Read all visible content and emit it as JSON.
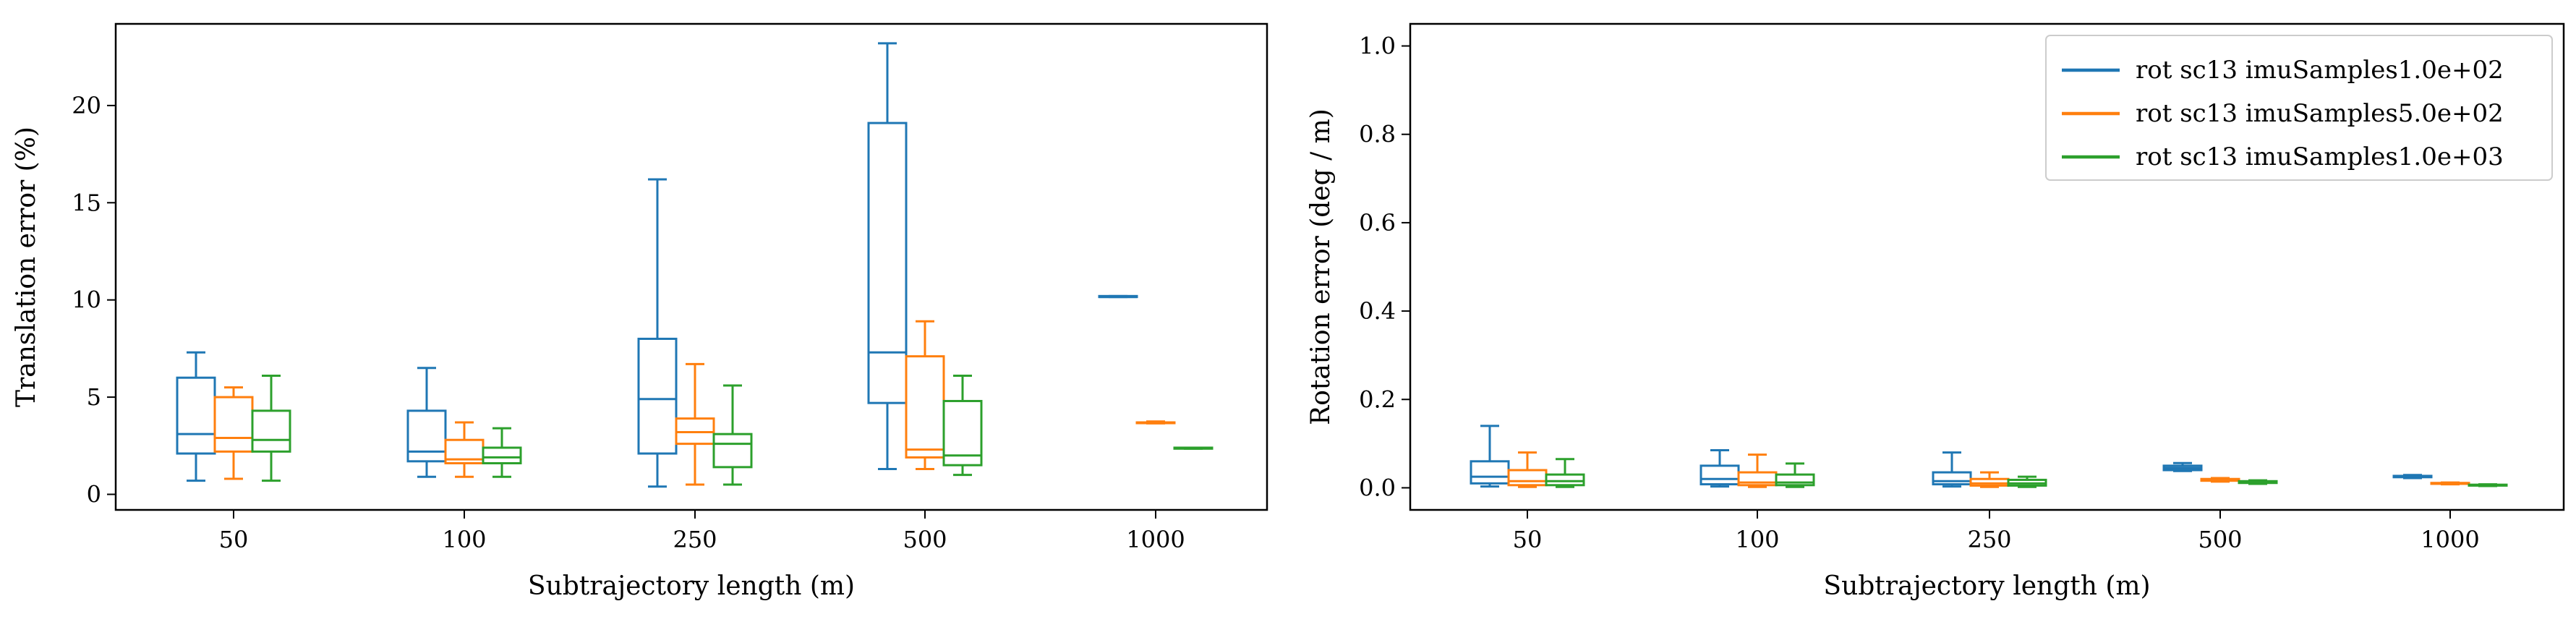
{
  "colors": {
    "series0": "#1f77b4",
    "series1": "#ff7f0e",
    "series2": "#2ca02c",
    "frame": "#000000",
    "legend_border": "#cccccc"
  },
  "chart_data": [
    {
      "type": "box",
      "xlabel": "Subtrajectory length (m)",
      "ylabel": "Translation error (%)",
      "categories": [
        "50",
        "100",
        "250",
        "500",
        "1000"
      ],
      "ylim": [
        -0.8,
        24.2
      ],
      "yticks": [
        0,
        5,
        10,
        15,
        20
      ],
      "grid": false,
      "legend": null,
      "series": [
        {
          "name": "rot sc13 imuSamples1.0e+02",
          "boxes": [
            {
              "min": 0.7,
              "q1": 2.1,
              "median": 3.1,
              "q3": 6.0,
              "max": 7.3
            },
            {
              "min": 0.9,
              "q1": 1.7,
              "median": 2.2,
              "q3": 4.3,
              "max": 6.5
            },
            {
              "min": 0.4,
              "q1": 2.1,
              "median": 4.9,
              "q3": 8.0,
              "max": 16.2
            },
            {
              "min": 1.3,
              "q1": 4.7,
              "median": 7.3,
              "q3": 19.1,
              "max": 23.2
            },
            {
              "min": 10.15,
              "q1": 10.15,
              "median": 10.15,
              "q3": 10.2,
              "max": 10.2
            }
          ]
        },
        {
          "name": "rot sc13 imuSamples5.0e+02",
          "boxes": [
            {
              "min": 0.8,
              "q1": 2.2,
              "median": 2.9,
              "q3": 5.0,
              "max": 5.5
            },
            {
              "min": 0.9,
              "q1": 1.6,
              "median": 1.8,
              "q3": 2.8,
              "max": 3.7
            },
            {
              "min": 0.5,
              "q1": 2.6,
              "median": 3.2,
              "q3": 3.9,
              "max": 6.7
            },
            {
              "min": 1.3,
              "q1": 1.9,
              "median": 2.3,
              "q3": 7.1,
              "max": 8.9
            },
            {
              "min": 3.65,
              "q1": 3.7,
              "median": 3.7,
              "q3": 3.7,
              "max": 3.75
            }
          ]
        },
        {
          "name": "rot sc13 imuSamples1.0e+03",
          "boxes": [
            {
              "min": 0.7,
              "q1": 2.2,
              "median": 2.8,
              "q3": 4.3,
              "max": 6.1
            },
            {
              "min": 0.9,
              "q1": 1.6,
              "median": 1.9,
              "q3": 2.4,
              "max": 3.4
            },
            {
              "min": 0.5,
              "q1": 1.4,
              "median": 2.6,
              "q3": 3.1,
              "max": 5.6
            },
            {
              "min": 1.0,
              "q1": 1.5,
              "median": 2.0,
              "q3": 4.8,
              "max": 6.1
            },
            {
              "min": 2.35,
              "q1": 2.35,
              "median": 2.4,
              "q3": 2.4,
              "max": 2.4
            }
          ]
        }
      ]
    },
    {
      "type": "box",
      "xlabel": "Subtrajectory length (m)",
      "ylabel": "Rotation error (deg / m)",
      "categories": [
        "50",
        "100",
        "250",
        "500",
        "1000"
      ],
      "ylim": [
        -0.05,
        1.05
      ],
      "yticks": [
        0.0,
        0.2,
        0.4,
        0.6,
        0.8,
        1.0
      ],
      "ytick_labels": [
        "0.0",
        "0.2",
        "0.4",
        "0.6",
        "0.8",
        "1.0"
      ],
      "grid": false,
      "legend": "top-right",
      "series": [
        {
          "name": "rot sc13 imuSamples1.0e+02",
          "boxes": [
            {
              "min": 0.003,
              "q1": 0.01,
              "median": 0.025,
              "q3": 0.06,
              "max": 0.14
            },
            {
              "min": 0.003,
              "q1": 0.008,
              "median": 0.02,
              "q3": 0.05,
              "max": 0.085
            },
            {
              "min": 0.003,
              "q1": 0.008,
              "median": 0.015,
              "q3": 0.035,
              "max": 0.08
            },
            {
              "min": 0.038,
              "q1": 0.04,
              "median": 0.045,
              "q3": 0.05,
              "max": 0.056
            },
            {
              "min": 0.022,
              "q1": 0.024,
              "median": 0.025,
              "q3": 0.027,
              "max": 0.029
            }
          ]
        },
        {
          "name": "rot sc13 imuSamples5.0e+02",
          "boxes": [
            {
              "min": 0.002,
              "q1": 0.006,
              "median": 0.015,
              "q3": 0.04,
              "max": 0.08
            },
            {
              "min": 0.002,
              "q1": 0.006,
              "median": 0.012,
              "q3": 0.035,
              "max": 0.075
            },
            {
              "min": 0.002,
              "q1": 0.005,
              "median": 0.01,
              "q3": 0.02,
              "max": 0.035
            },
            {
              "min": 0.014,
              "q1": 0.016,
              "median": 0.018,
              "q3": 0.02,
              "max": 0.022
            },
            {
              "min": 0.008,
              "q1": 0.009,
              "median": 0.01,
              "q3": 0.011,
              "max": 0.012
            }
          ]
        },
        {
          "name": "rot sc13 imuSamples1.0e+03",
          "boxes": [
            {
              "min": 0.002,
              "q1": 0.006,
              "median": 0.015,
              "q3": 0.03,
              "max": 0.065
            },
            {
              "min": 0.002,
              "q1": 0.006,
              "median": 0.012,
              "q3": 0.03,
              "max": 0.055
            },
            {
              "min": 0.002,
              "q1": 0.005,
              "median": 0.01,
              "q3": 0.018,
              "max": 0.025
            },
            {
              "min": 0.009,
              "q1": 0.011,
              "median": 0.013,
              "q3": 0.015,
              "max": 0.017
            },
            {
              "min": 0.004,
              "q1": 0.005,
              "median": 0.006,
              "q3": 0.007,
              "max": 0.008
            }
          ]
        }
      ]
    }
  ]
}
